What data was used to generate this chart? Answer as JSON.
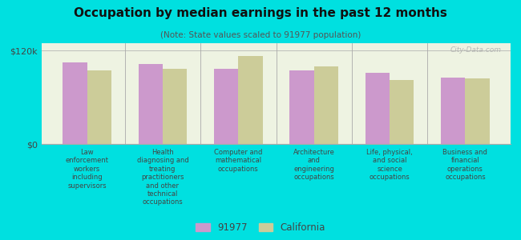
{
  "title": "Occupation by median earnings in the past 12 months",
  "subtitle": "(Note: State values scaled to 91977 population)",
  "categories": [
    "Law\nenforcement\nworkers\nincluding\nsupervisors",
    "Health\ndiagnosing and\ntreating\npractitioners\nand other\ntechnical\noccupations",
    "Computer and\nmathematical\noccupations",
    "Architecture\nand\nengineering\noccupations",
    "Life, physical,\nand social\nscience\noccupations",
    "Business and\nfinancial\noperations\noccupations"
  ],
  "values_91977": [
    105000,
    103000,
    97000,
    95000,
    92000,
    85000
  ],
  "values_california": [
    95000,
    97000,
    113000,
    100000,
    82000,
    84000
  ],
  "color_91977": "#cc99cc",
  "color_california": "#cccc99",
  "bg_color": "#00e0e0",
  "plot_bg": "#eef3e2",
  "ylim": [
    0,
    120000
  ],
  "ytick_labels": [
    "$0",
    "$120k"
  ],
  "ytick_values": [
    0,
    120000
  ],
  "legend_91977": "91977",
  "legend_california": "California",
  "watermark": "City-Data.com",
  "bar_width": 0.32
}
